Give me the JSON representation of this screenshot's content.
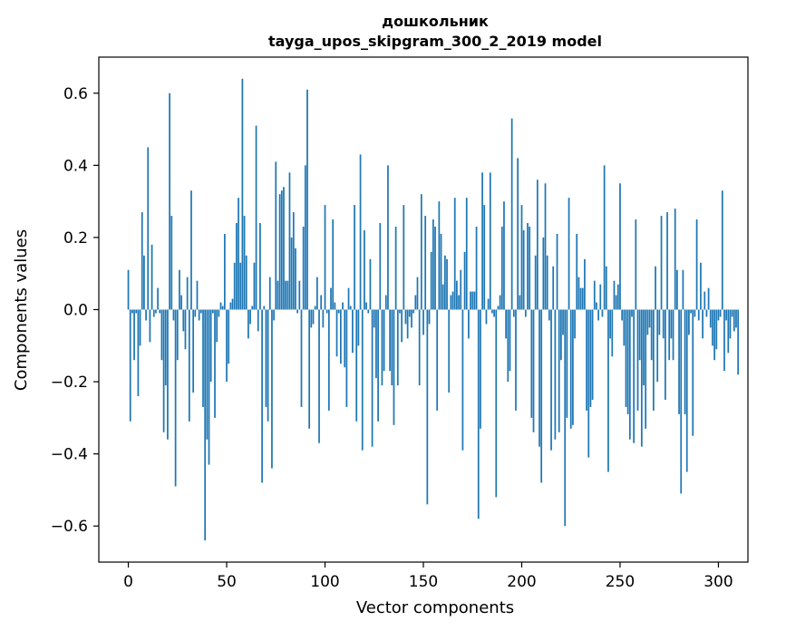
{
  "chart_data": {
    "type": "bar",
    "title_line1": "дошкольник",
    "title_line2": "tayga_upos_skipgram_300_2_2019 model",
    "xlabel": "Vector components",
    "ylabel": "Components values",
    "xlim": [
      -15,
      315
    ],
    "ylim": [
      -0.7,
      0.7
    ],
    "x_ticks": [
      0,
      50,
      100,
      150,
      200,
      250,
      300
    ],
    "x_tick_labels": [
      "0",
      "50",
      "100",
      "150",
      "200",
      "250",
      "300"
    ],
    "y_ticks": [
      -0.6,
      -0.4,
      -0.2,
      0.0,
      0.2,
      0.4,
      0.6
    ],
    "y_tick_labels": [
      "−0.6",
      "−0.4",
      "−0.2",
      "0.0",
      "0.2",
      "0.4",
      "0.6"
    ],
    "bar_color": "#1f77b4",
    "values": [
      0.11,
      -0.31,
      -0.01,
      -0.14,
      -0.01,
      -0.24,
      -0.1,
      0.27,
      0.15,
      -0.03,
      0.45,
      -0.09,
      0.18,
      -0.02,
      -0.01,
      0.06,
      -0.01,
      -0.14,
      -0.34,
      -0.21,
      -0.36,
      0.6,
      0.26,
      -0.03,
      -0.49,
      -0.14,
      0.11,
      0.04,
      -0.06,
      -0.11,
      0.09,
      -0.31,
      0.33,
      -0.23,
      -0.02,
      0.08,
      -0.03,
      -0.01,
      -0.27,
      -0.64,
      -0.36,
      -0.43,
      -0.2,
      -0.01,
      -0.3,
      -0.09,
      -0.02,
      0.02,
      0.01,
      0.21,
      -0.2,
      -0.15,
      0.02,
      0.03,
      0.13,
      0.24,
      0.31,
      0.13,
      0.64,
      0.26,
      0.15,
      -0.08,
      -0.04,
      0.01,
      0.13,
      0.51,
      -0.06,
      0.24,
      -0.48,
      0.01,
      -0.27,
      -0.31,
      0.09,
      -0.44,
      -0.03,
      0.41,
      0.08,
      0.32,
      0.33,
      0.34,
      0.08,
      0.08,
      0.38,
      0.2,
      0.27,
      0.17,
      -0.01,
      0.08,
      -0.27,
      0.23,
      0.4,
      0.61,
      -0.33,
      -0.05,
      -0.04,
      0.01,
      0.09,
      -0.37,
      0.04,
      -0.05,
      0.29,
      -0.01,
      -0.28,
      0.06,
      0.25,
      0.02,
      -0.13,
      -0.01,
      -0.15,
      0.02,
      -0.16,
      -0.27,
      0.06,
      0.01,
      -0.12,
      0.29,
      -0.31,
      -0.1,
      0.43,
      -0.39,
      0.22,
      0.02,
      -0.01,
      0.14,
      -0.38,
      -0.05,
      -0.19,
      -0.31,
      0.24,
      -0.21,
      -0.17,
      0.04,
      0.4,
      -0.17,
      -0.21,
      -0.32,
      0.23,
      -0.21,
      -0.01,
      -0.09,
      0.29,
      -0.04,
      -0.08,
      -0.02,
      -0.05,
      -0.01,
      0.04,
      0.09,
      -0.21,
      0.32,
      -0.07,
      0.26,
      -0.54,
      -0.04,
      0.16,
      0.25,
      0.23,
      -0.28,
      0.3,
      0.21,
      0.07,
      0.15,
      0.14,
      -0.23,
      0.04,
      0.05,
      0.31,
      0.08,
      0.04,
      0.11,
      -0.39,
      0.16,
      0.31,
      -0.08,
      0.05,
      0.05,
      0.05,
      0.23,
      -0.58,
      -0.33,
      0.38,
      0.29,
      -0.04,
      0.03,
      0.38,
      -0.01,
      -0.02,
      -0.52,
      0.01,
      0.04,
      0.23,
      0.3,
      -0.08,
      -0.2,
      -0.17,
      0.53,
      -0.02,
      -0.28,
      0.42,
      0.04,
      0.29,
      0.22,
      -0.02,
      0.24,
      0.23,
      -0.3,
      -0.34,
      0.15,
      0.36,
      -0.38,
      -0.48,
      0.2,
      0.35,
      0.15,
      -0.03,
      -0.39,
      0.12,
      -0.36,
      0.21,
      -0.34,
      -0.14,
      -0.07,
      -0.6,
      -0.3,
      0.31,
      -0.33,
      -0.32,
      -0.08,
      0.21,
      0.09,
      0.06,
      0.06,
      0.14,
      -0.28,
      -0.41,
      -0.27,
      -0.25,
      0.08,
      0.02,
      -0.03,
      0.07,
      -0.02,
      0.4,
      0.12,
      -0.45,
      -0.08,
      -0.13,
      0.08,
      0.04,
      0.07,
      0.35,
      -0.03,
      -0.1,
      -0.27,
      -0.29,
      -0.36,
      -0.02,
      -0.37,
      0.25,
      -0.28,
      -0.14,
      -0.38,
      -0.21,
      -0.33,
      -0.07,
      -0.05,
      -0.14,
      -0.28,
      0.12,
      -0.2,
      -0.07,
      0.26,
      -0.08,
      -0.25,
      0.27,
      -0.14,
      -0.08,
      -0.14,
      0.28,
      0.11,
      -0.29,
      -0.51,
      0.11,
      -0.29,
      -0.45,
      -0.07,
      -0.01,
      -0.35,
      -0.02,
      0.25,
      -0.03,
      0.13,
      -0.08,
      0.05,
      -0.02,
      0.06,
      -0.05,
      -0.1,
      -0.14,
      -0.11,
      -0.03,
      -0.02,
      0.33,
      -0.17,
      -0.03,
      -0.12,
      -0.08,
      -0.02,
      -0.06,
      -0.05,
      -0.18
    ]
  }
}
